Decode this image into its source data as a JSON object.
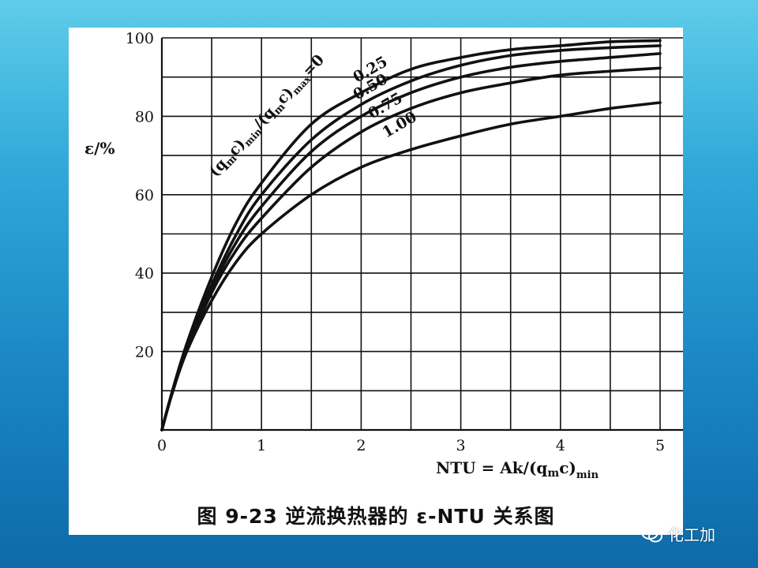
{
  "chart_data": {
    "type": "line",
    "caption": "图 9-23   逆流换热器的 ε-NTU 关系图",
    "xlabel": "NTU = Ak/(q",
    "xlabel_sub": "m",
    "xlabel_end": "c)",
    "xlabel_min": "min",
    "ylabel": "ε/%",
    "xlim": [
      0,
      5
    ],
    "ylim": [
      0,
      100
    ],
    "x_ticks": [
      "0",
      "1",
      "2",
      "3",
      "4",
      "5"
    ],
    "y_ticks": [
      "20",
      "40",
      "60",
      "80",
      "100"
    ],
    "grid": true,
    "legend_title": "(q",
    "legend_title_parts": [
      "(q",
      "m",
      "c)",
      "min",
      "/(q",
      "m",
      "c)",
      "max",
      "=0"
    ],
    "series": [
      {
        "name": "0",
        "x": [
          0,
          0.1,
          0.25,
          0.5,
          0.75,
          1,
          1.5,
          2,
          2.5,
          3,
          3.5,
          4,
          4.5,
          5
        ],
        "y": [
          0,
          9.5,
          22,
          39,
          53,
          63,
          78,
          86,
          92,
          95,
          97,
          98,
          99,
          99.3
        ]
      },
      {
        "name": "0.25",
        "x": [
          0,
          0.1,
          0.25,
          0.5,
          0.75,
          1,
          1.5,
          2,
          2.5,
          3,
          3.5,
          4,
          4.5,
          5
        ],
        "y": [
          0,
          9.3,
          21.5,
          37,
          50,
          60,
          74,
          83,
          89,
          93,
          95.5,
          96.8,
          97.5,
          98
        ]
      },
      {
        "name": "0.50",
        "x": [
          0,
          0.1,
          0.25,
          0.5,
          0.75,
          1,
          1.5,
          2,
          2.5,
          3,
          3.5,
          4,
          4.5,
          5
        ],
        "y": [
          0,
          9.2,
          21,
          36,
          48,
          57,
          71,
          80,
          86,
          90,
          92.5,
          94,
          95,
          96
        ]
      },
      {
        "name": "0.75",
        "x": [
          0,
          0.1,
          0.25,
          0.5,
          0.75,
          1,
          1.5,
          2,
          2.5,
          3,
          3.5,
          4,
          4.5,
          5
        ],
        "y": [
          0,
          9.1,
          20.5,
          35,
          46,
          54,
          67,
          76,
          82,
          86,
          88.5,
          90.5,
          91.5,
          92.3
        ]
      },
      {
        "name": "1.00",
        "x": [
          0,
          0.1,
          0.25,
          0.5,
          0.75,
          1,
          1.5,
          2,
          2.5,
          3,
          3.5,
          4,
          4.5,
          5
        ],
        "y": [
          0,
          9,
          20,
          33,
          43,
          50,
          60,
          67,
          71.5,
          75,
          78,
          80,
          82,
          83.5
        ]
      }
    ]
  },
  "watermark": {
    "icon": "wechat-icon",
    "text": "化工加"
  }
}
